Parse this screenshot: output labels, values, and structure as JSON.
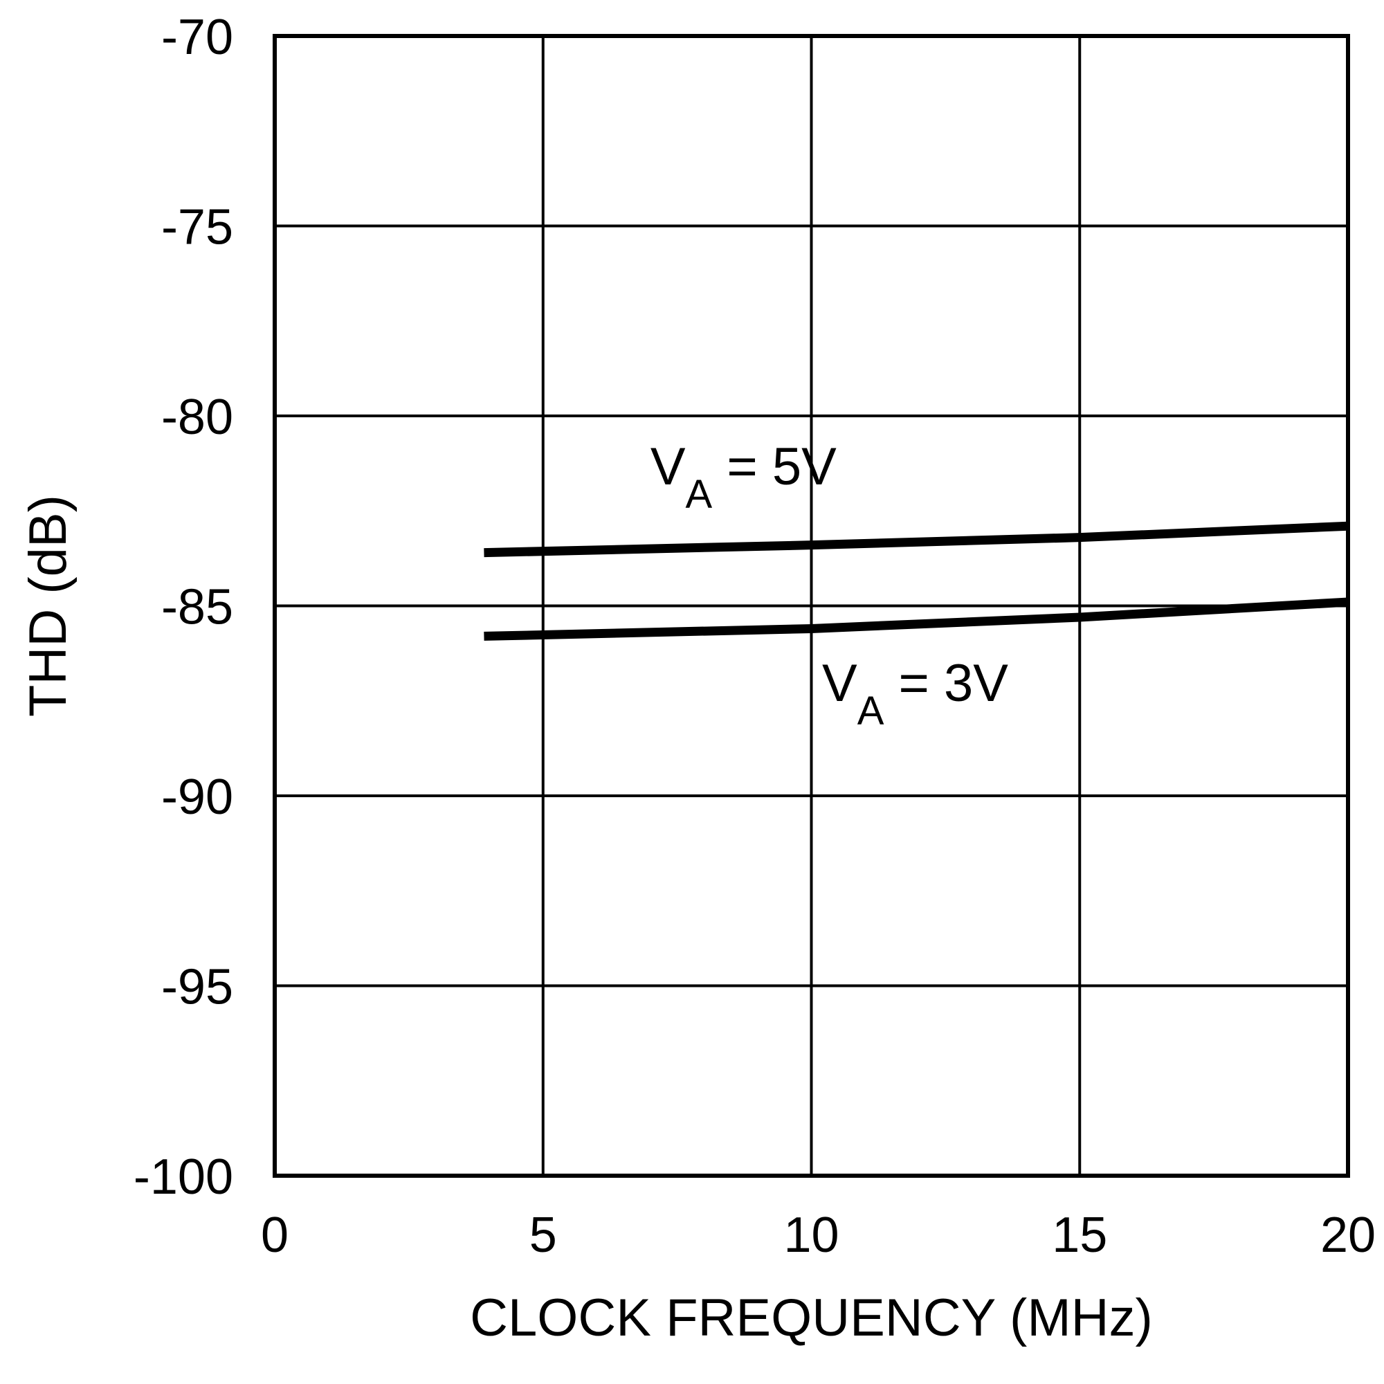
{
  "chart_data": {
    "type": "line",
    "title": "",
    "xlabel": "CLOCK FREQUENCY (MHz)",
    "ylabel": "THD (dB)",
    "xlim": [
      0,
      20
    ],
    "ylim": [
      -100,
      -70
    ],
    "xticks": [
      0,
      5,
      10,
      15,
      20
    ],
    "yticks": [
      -70,
      -75,
      -80,
      -85,
      -90,
      -95,
      -100
    ],
    "x_tick_labels": [
      "0",
      "5",
      "10",
      "15",
      "20"
    ],
    "y_tick_labels": [
      "-70",
      "-75",
      "-80",
      "-85",
      "-90",
      "-95",
      "-100"
    ],
    "grid": true,
    "line_color": "#000000",
    "series": [
      {
        "name": "VA = 5V",
        "x": [
          3.9,
          10,
          15,
          20
        ],
        "y": [
          -83.6,
          -83.4,
          -83.2,
          -82.9
        ]
      },
      {
        "name": "VA = 3V",
        "x": [
          3.9,
          10,
          15,
          20
        ],
        "y": [
          -85.8,
          -85.6,
          -85.3,
          -84.9
        ]
      }
    ],
    "annotations": [
      {
        "main": "V",
        "sub": "A",
        "rest": " = 5V",
        "series": 0,
        "x": 7,
        "y": -81.8
      },
      {
        "main": "V",
        "sub": "A",
        "rest": " = 3V",
        "series": 1,
        "x": 10.2,
        "y": -87.5
      }
    ]
  }
}
